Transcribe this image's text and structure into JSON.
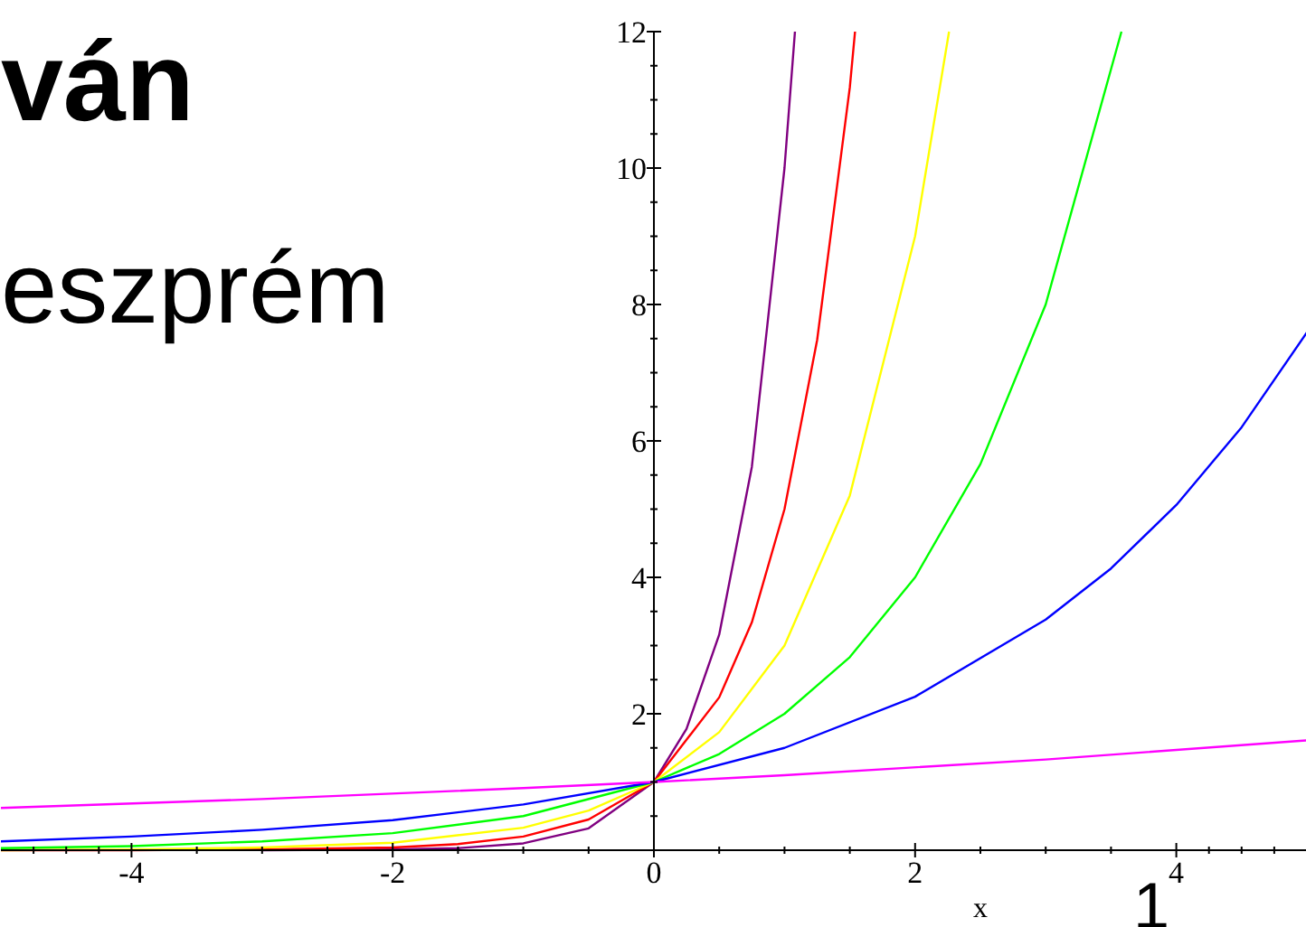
{
  "chart_data": {
    "type": "line",
    "xlabel": "x",
    "xlim": [
      -5,
      5
    ],
    "ylim": [
      0,
      12
    ],
    "xticks": [
      -4,
      -2,
      0,
      2,
      4
    ],
    "yticks": [
      2,
      4,
      6,
      8,
      10,
      12
    ],
    "grid": false,
    "annotations": [
      "ván",
      "eszprém",
      "1"
    ],
    "series": [
      {
        "color": "#800080",
        "x": [
          -3,
          -2,
          -1.5,
          -1,
          -0.5,
          0,
          0.25,
          0.5,
          0.75,
          1,
          1.08
        ],
        "values": [
          0,
          0.01,
          0.03,
          0.1,
          0.32,
          1,
          1.78,
          3.16,
          5.62,
          10,
          12
        ]
      },
      {
        "color": "#ff0000",
        "x": [
          -5,
          -4,
          -3,
          -2,
          -1.5,
          -1,
          -0.5,
          0,
          0.5,
          0.75,
          1,
          1.25,
          1.5,
          1.54
        ],
        "values": [
          0,
          0,
          0.01,
          0.04,
          0.09,
          0.2,
          0.45,
          1,
          2.24,
          3.34,
          5,
          7.48,
          11.18,
          12
        ]
      },
      {
        "color": "#ffff00",
        "x": [
          -5,
          -4,
          -3,
          -2,
          -1,
          -0.5,
          0,
          0.5,
          1,
          1.5,
          2,
          2.26
        ],
        "values": [
          0,
          0.01,
          0.04,
          0.11,
          0.33,
          0.58,
          1,
          1.73,
          3,
          5.2,
          9,
          12
        ]
      },
      {
        "color": "#00ff00",
        "x": [
          -5,
          -4,
          -3,
          -2,
          -1,
          0,
          0.5,
          1,
          1.5,
          2,
          2.5,
          3,
          3.58
        ],
        "values": [
          0.03,
          0.06,
          0.13,
          0.25,
          0.5,
          1,
          1.41,
          2,
          2.83,
          4,
          5.66,
          8,
          12
        ]
      },
      {
        "color": "#0000ff",
        "x": [
          -5,
          -4,
          -3,
          -2,
          -1,
          0,
          1,
          2,
          3,
          3.5,
          4,
          4.5,
          5
        ],
        "values": [
          0.13,
          0.2,
          0.3,
          0.44,
          0.67,
          1,
          1.5,
          2.25,
          3.38,
          4.13,
          5.06,
          6.2,
          7.59
        ]
      },
      {
        "color": "#ff00ff",
        "x": [
          -5,
          -3,
          -1,
          0,
          1,
          3,
          5
        ],
        "values": [
          0.62,
          0.75,
          0.91,
          1,
          1.1,
          1.33,
          1.61
        ]
      }
    ]
  }
}
